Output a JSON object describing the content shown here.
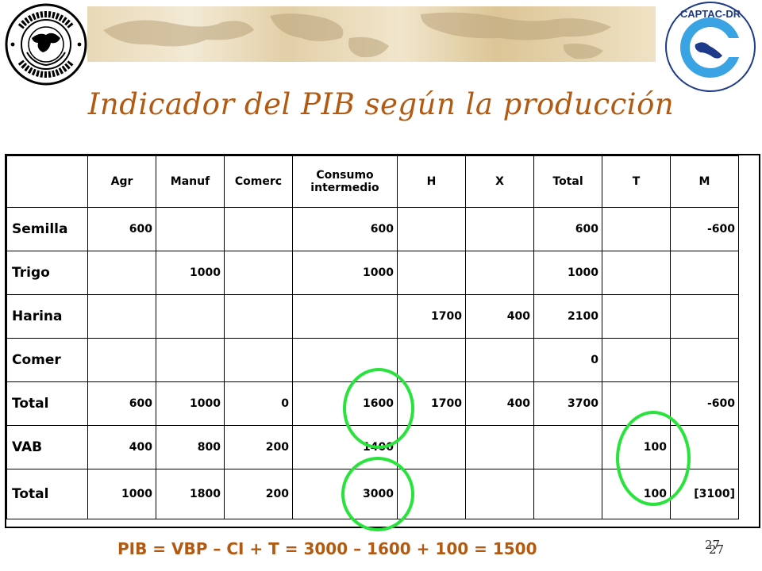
{
  "title": "Indicador del PIB según la producción",
  "logos": {
    "imf": "International Monetary Fund logo",
    "captac": "CAPTAC-DR"
  },
  "table": {
    "headers": [
      "",
      "Agr",
      "Manuf",
      "Comerc",
      "Consumo intermedio",
      "H",
      "X",
      "Total",
      "T",
      "M"
    ],
    "rows": [
      [
        "Semilla",
        "600",
        "",
        "",
        "600",
        "",
        "",
        "600",
        "",
        "-600"
      ],
      [
        "Trigo",
        "",
        "1000",
        "",
        "1000",
        "",
        "",
        "1000",
        "",
        ""
      ],
      [
        "Harina",
        "",
        "",
        "",
        "",
        "1700",
        "400",
        "2100",
        "",
        ""
      ],
      [
        "Comer",
        "",
        "",
        "",
        "",
        "",
        "",
        "0",
        "",
        ""
      ],
      [
        "Total",
        "600",
        "1000",
        "0",
        "1600",
        "1700",
        "400",
        "3700",
        "",
        "-600"
      ],
      [
        "VAB",
        "400",
        "800",
        "200",
        "1400",
        "",
        "",
        "",
        "100",
        ""
      ],
      [
        "Total",
        "1000",
        "1800",
        "200",
        "3000",
        "",
        "",
        "",
        "100",
        "[3100]"
      ]
    ]
  },
  "formula": "PIB = VBP – CI + T = 3000 – 1600 + 100 = 1500",
  "page_number": "27",
  "colors": {
    "title": "#b35a12",
    "highlight_circle": "#27e33b"
  }
}
